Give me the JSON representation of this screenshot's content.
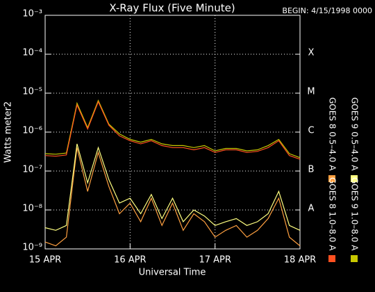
{
  "chart_data": {
    "type": "line",
    "title": "X-Ray Flux (Five Minute)",
    "subtitle": "BEGIN: 4/15/1998 0000",
    "ylabel": "Watts meter2",
    "xlabel": "Universal Time",
    "log_y": true,
    "grid": true,
    "xlim": [
      0,
      3
    ],
    "xticks": [
      {
        "value": 0,
        "label": "15 APR"
      },
      {
        "value": 1,
        "label": "16 APR"
      },
      {
        "value": 2,
        "label": "17 APR"
      },
      {
        "value": 3,
        "label": "18 APR"
      }
    ],
    "ylim": [
      1e-09,
      0.001
    ],
    "yticks": [
      {
        "value": 1e-09,
        "label": "10⁻⁹"
      },
      {
        "value": 1e-08,
        "label": "10⁻⁸"
      },
      {
        "value": 1e-07,
        "label": "10⁻⁷"
      },
      {
        "value": 1e-06,
        "label": "10⁻⁶"
      },
      {
        "value": 1e-05,
        "label": "10⁻⁵"
      },
      {
        "value": 0.0001,
        "label": "10⁻⁴"
      },
      {
        "value": 0.001,
        "label": "10⁻³"
      }
    ],
    "class_ticks": [
      {
        "value": 1e-08,
        "label": "A"
      },
      {
        "value": 1e-07,
        "label": "B"
      },
      {
        "value": 1e-06,
        "label": "C"
      },
      {
        "value": 1e-05,
        "label": "M"
      },
      {
        "value": 0.0001,
        "label": "X"
      }
    ],
    "x": [
      0,
      0.125,
      0.25,
      0.375,
      0.5,
      0.625,
      0.75,
      0.875,
      1,
      1.125,
      1.25,
      1.375,
      1.5,
      1.625,
      1.75,
      1.875,
      2,
      2.125,
      2.25,
      2.375,
      2.5,
      2.625,
      2.75,
      2.875,
      3
    ],
    "series": [
      {
        "name": "GOES 8 0.5–4.0 A",
        "color": "#ffa040",
        "values": [
          1.5e-09,
          1.2e-09,
          2e-09,
          4e-07,
          3e-08,
          3e-07,
          4e-08,
          8e-09,
          1.5e-08,
          5e-09,
          2e-08,
          4e-09,
          1.5e-08,
          3e-09,
          8e-09,
          5e-09,
          2e-09,
          3e-09,
          4e-09,
          2e-09,
          3e-09,
          6e-09,
          2e-08,
          2e-09,
          1.2e-09
        ]
      },
      {
        "name": "GOES 9 0.5–4.0 A",
        "color": "#ffff80",
        "values": [
          3.5e-09,
          3e-09,
          4e-09,
          5e-07,
          5e-08,
          4e-07,
          6e-08,
          1.5e-08,
          2e-08,
          8e-09,
          2.5e-08,
          6e-09,
          2e-08,
          5e-09,
          1e-08,
          7e-09,
          4e-09,
          5e-09,
          6e-09,
          4e-09,
          5e-09,
          8e-09,
          3e-08,
          4e-09,
          3e-09
        ]
      },
      {
        "name": "GOES 9 1.0–8.0 A",
        "color": "#c8c800",
        "values": [
          2.8e-07,
          2.7e-07,
          2.9e-07,
          5.5e-06,
          1.3e-06,
          6.5e-06,
          1.6e-06,
          9e-07,
          6.5e-07,
          5.5e-07,
          6.5e-07,
          5e-07,
          4.5e-07,
          4.5e-07,
          4e-07,
          4.5e-07,
          3.3e-07,
          3.8e-07,
          3.8e-07,
          3.3e-07,
          3.5e-07,
          4.5e-07,
          6.5e-07,
          2.8e-07,
          2.2e-07
        ]
      },
      {
        "name": "GOES 8 1.0–8.0 A",
        "color": "#ff5020",
        "values": [
          2.5e-07,
          2.4e-07,
          2.6e-07,
          5e-06,
          1.2e-06,
          6e-06,
          1.5e-06,
          8e-07,
          6e-07,
          5e-07,
          6e-07,
          4.5e-07,
          4e-07,
          4e-07,
          3.5e-07,
          4e-07,
          3e-07,
          3.5e-07,
          3.5e-07,
          3e-07,
          3.2e-07,
          4e-07,
          6e-07,
          2.5e-07,
          2e-07
        ]
      }
    ]
  }
}
